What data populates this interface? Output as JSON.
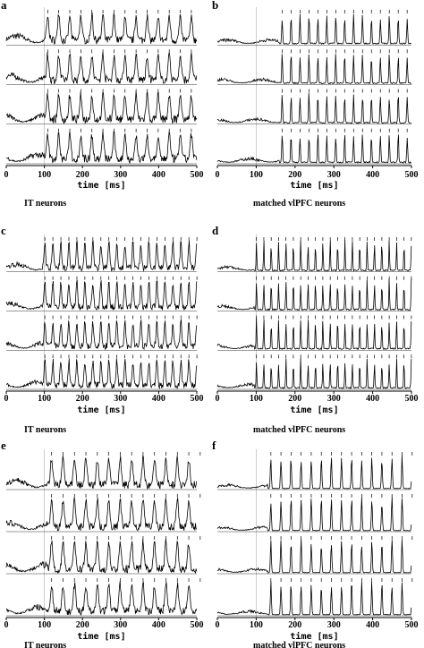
{
  "figure": {
    "panels": [
      {
        "label": "a",
        "caption": "IT neurons",
        "xlabel": "time [ms]",
        "xlim": [
          0,
          500
        ],
        "xticks": [
          0,
          100,
          200,
          300,
          400,
          500
        ]
      },
      {
        "label": "b",
        "caption": "matched vlPFC neurons",
        "xlabel": "time [ms]",
        "xlim": [
          0,
          500
        ],
        "xticks": [
          0,
          100,
          200,
          300,
          400,
          500
        ]
      },
      {
        "label": "c",
        "caption": "IT neurons",
        "xlabel": "time [ms]",
        "xlim": [
          0,
          500
        ],
        "xticks": [
          0,
          100,
          200,
          300,
          400,
          500
        ]
      },
      {
        "label": "d",
        "caption": "matched vlPFC neurons",
        "xlabel": "time [ms]",
        "xlim": [
          0,
          500
        ],
        "xticks": [
          0,
          100,
          200,
          300,
          400,
          500
        ]
      },
      {
        "label": "e",
        "caption": "IT neurons",
        "xlabel": "time [ms]",
        "xlim": [
          0,
          500
        ],
        "xticks": [
          0,
          100,
          200,
          300,
          400,
          500
        ]
      },
      {
        "label": "f",
        "caption": "matched vlPFC neurons",
        "xlabel": "time [ms]",
        "xlim": [
          0,
          500
        ],
        "xticks": [
          0,
          100,
          200,
          300,
          400,
          500
        ]
      }
    ]
  }
}
